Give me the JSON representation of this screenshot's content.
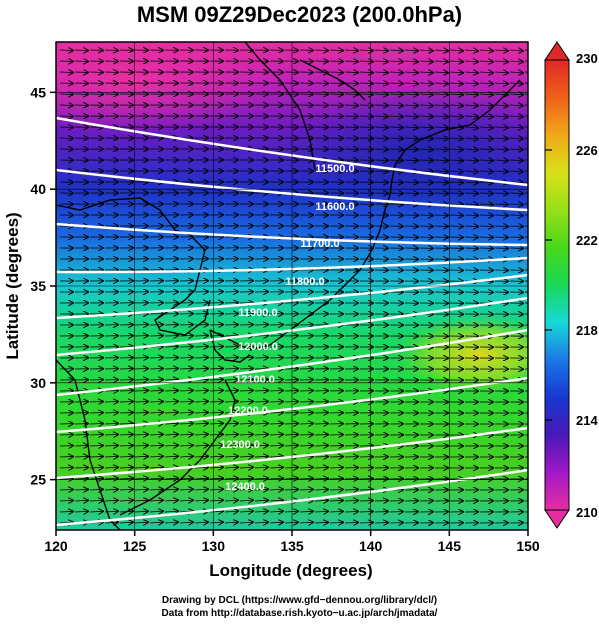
{
  "title": "MSM 09Z29Dec2023 (200.0hPa)",
  "axes": {
    "xlabel": "Longitude (degrees)",
    "ylabel": "Latitude  (degrees)",
    "xlim": [
      120,
      150
    ],
    "ylim": [
      22.4,
      47.6
    ],
    "xticks": [
      "120",
      "125",
      "130",
      "135",
      "140",
      "145",
      "150"
    ],
    "yticks": [
      "25",
      "30",
      "35",
      "40",
      "45"
    ]
  },
  "colorbar": {
    "min": 210,
    "max": 230,
    "ticks": [
      "210",
      "214",
      "218",
      "222",
      "226",
      "230"
    ],
    "colors": [
      "#e62ea0",
      "#a218c8",
      "#4818b8",
      "#1838d0",
      "#1a78e6",
      "#18d8d8",
      "#18d858",
      "#48d818",
      "#98e018",
      "#d8e018",
      "#f0a818",
      "#f06018",
      "#e02828"
    ]
  },
  "contours": [
    {
      "label": "11500.0"
    },
    {
      "label": "11600.0"
    },
    {
      "label": "11700.0"
    },
    {
      "label": "11800.0"
    },
    {
      "label": "11900.0"
    },
    {
      "label": "12000.0"
    },
    {
      "label": "12100.0"
    },
    {
      "label": "12200.0"
    },
    {
      "label": "12300.0"
    },
    {
      "label": "12400.0"
    }
  ],
  "credits": {
    "line1": "Drawing by DCL (https://www.gfd−dennou.org/library/dcl/)",
    "line2": "Data from http://database.rish.kyoto−u.ac.jp/arch/jmadata/"
  }
}
